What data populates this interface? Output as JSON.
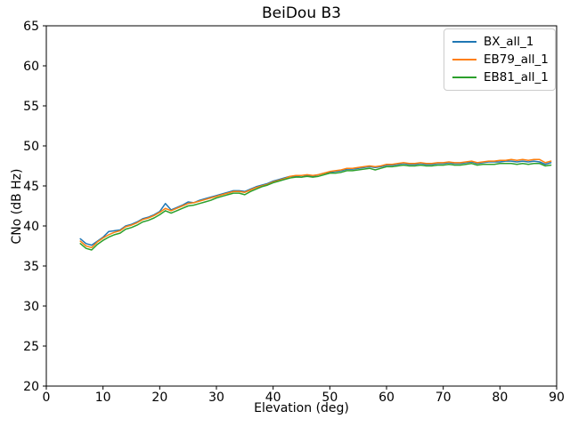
{
  "figure": {
    "background": "#ffffff",
    "frame_color": "#000000",
    "legend_border_color": "#cccccc"
  },
  "chart_data": {
    "type": "line",
    "title": "BeiDou B3",
    "xlabel": "Elevation (deg)",
    "ylabel": "CNo (dB Hz)",
    "xlim": [
      0,
      90
    ],
    "ylim": [
      20,
      65
    ],
    "xticks": [
      0,
      10,
      20,
      30,
      40,
      50,
      60,
      70,
      80,
      90
    ],
    "yticks": [
      20,
      25,
      30,
      35,
      40,
      45,
      50,
      55,
      60,
      65
    ],
    "grid": false,
    "legend_position": "upper right",
    "x": [
      6,
      7,
      8,
      9,
      10,
      11,
      12,
      13,
      14,
      15,
      16,
      17,
      18,
      19,
      20,
      21,
      22,
      23,
      24,
      25,
      26,
      27,
      28,
      29,
      30,
      31,
      32,
      33,
      34,
      35,
      36,
      37,
      38,
      39,
      40,
      41,
      42,
      43,
      44,
      45,
      46,
      47,
      48,
      49,
      50,
      51,
      52,
      53,
      54,
      55,
      56,
      57,
      58,
      59,
      60,
      61,
      62,
      63,
      64,
      65,
      66,
      67,
      68,
      69,
      70,
      71,
      72,
      73,
      74,
      75,
      76,
      77,
      78,
      79,
      80,
      81,
      82,
      83,
      84,
      85,
      86,
      87,
      88,
      89
    ],
    "series": [
      {
        "name": "BX_all_1",
        "color": "#1f77b4",
        "values": [
          38.4,
          37.8,
          37.6,
          38.1,
          38.6,
          39.3,
          39.4,
          39.5,
          40.0,
          40.2,
          40.5,
          40.9,
          41.1,
          41.4,
          41.8,
          42.8,
          42.0,
          42.3,
          42.6,
          43.0,
          42.9,
          43.2,
          43.4,
          43.6,
          43.8,
          44.0,
          44.2,
          44.4,
          44.4,
          44.3,
          44.6,
          44.9,
          45.1,
          45.3,
          45.6,
          45.8,
          46.0,
          46.2,
          46.2,
          46.1,
          46.3,
          46.2,
          46.4,
          46.6,
          46.7,
          46.8,
          46.9,
          47.1,
          47.1,
          47.2,
          47.3,
          47.4,
          47.3,
          47.4,
          47.6,
          47.6,
          47.7,
          47.8,
          47.7,
          47.7,
          47.8,
          47.7,
          47.7,
          47.8,
          47.8,
          47.9,
          47.8,
          47.8,
          47.9,
          48.0,
          47.8,
          47.9,
          48.0,
          48.0,
          48.0,
          48.1,
          48.1,
          48.0,
          48.1,
          48.0,
          48.1,
          48.0,
          47.7,
          47.9
        ]
      },
      {
        "name": "EB79_all_1",
        "color": "#ff7f0e",
        "values": [
          38.1,
          37.5,
          37.3,
          38.0,
          38.5,
          38.9,
          39.2,
          39.4,
          39.9,
          40.1,
          40.4,
          40.8,
          41.0,
          41.3,
          41.7,
          42.2,
          41.9,
          42.2,
          42.5,
          42.8,
          42.9,
          43.1,
          43.3,
          43.5,
          43.7,
          43.9,
          44.1,
          44.3,
          44.3,
          44.2,
          44.5,
          44.8,
          45.0,
          45.2,
          45.5,
          45.7,
          45.9,
          46.2,
          46.3,
          46.3,
          46.4,
          46.3,
          46.4,
          46.6,
          46.8,
          46.9,
          47.0,
          47.2,
          47.2,
          47.3,
          47.4,
          47.5,
          47.4,
          47.5,
          47.7,
          47.7,
          47.8,
          47.9,
          47.8,
          47.8,
          47.9,
          47.8,
          47.8,
          47.9,
          47.9,
          48.0,
          47.9,
          47.9,
          48.0,
          48.1,
          47.9,
          48.0,
          48.1,
          48.1,
          48.2,
          48.2,
          48.3,
          48.2,
          48.3,
          48.2,
          48.3,
          48.3,
          47.9,
          48.1
        ]
      },
      {
        "name": "EB81_all_1",
        "color": "#2ca02c",
        "values": [
          37.8,
          37.2,
          37.0,
          37.7,
          38.2,
          38.6,
          38.9,
          39.1,
          39.6,
          39.8,
          40.1,
          40.5,
          40.7,
          41.0,
          41.4,
          41.9,
          41.6,
          41.9,
          42.2,
          42.5,
          42.6,
          42.8,
          43.0,
          43.2,
          43.5,
          43.7,
          43.9,
          44.1,
          44.1,
          43.9,
          44.3,
          44.6,
          44.9,
          45.1,
          45.4,
          45.6,
          45.8,
          46.0,
          46.1,
          46.1,
          46.2,
          46.1,
          46.2,
          46.4,
          46.6,
          46.6,
          46.7,
          46.9,
          46.9,
          47.0,
          47.1,
          47.2,
          47.0,
          47.2,
          47.4,
          47.4,
          47.5,
          47.6,
          47.5,
          47.5,
          47.6,
          47.5,
          47.5,
          47.6,
          47.6,
          47.7,
          47.6,
          47.6,
          47.7,
          47.8,
          47.6,
          47.7,
          47.7,
          47.7,
          47.8,
          47.8,
          47.8,
          47.7,
          47.8,
          47.7,
          47.8,
          47.8,
          47.5,
          47.6
        ]
      }
    ]
  }
}
